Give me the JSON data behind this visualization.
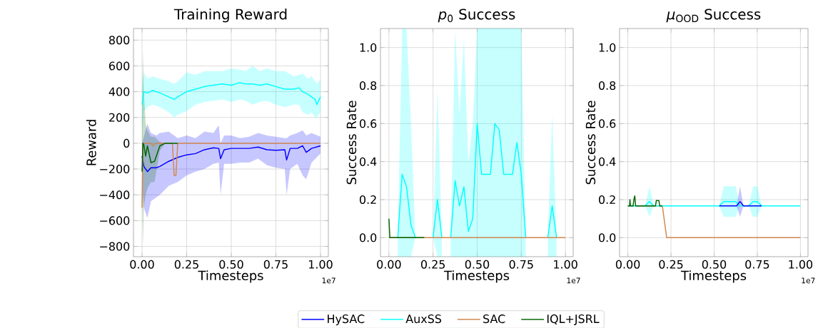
{
  "chart_data": [
    {
      "type": "line",
      "title": "Training Reward",
      "xlabel": "Timesteps",
      "ylabel": "Reward",
      "xlim": [
        -0.048,
        1.044
      ],
      "ylim": [
        -880,
        890
      ],
      "xticks": [
        {
          "value": 0,
          "label": "0.00"
        },
        {
          "value": 0.25,
          "label": "0.25"
        },
        {
          "value": 0.5,
          "label": "0.50"
        },
        {
          "value": 0.75,
          "label": "0.75"
        },
        {
          "value": 1,
          "label": "1.00"
        }
      ],
      "yticks": [
        {
          "value": -800,
          "label": "−800"
        },
        {
          "value": -600,
          "label": "−600"
        },
        {
          "value": -400,
          "label": "−400"
        },
        {
          "value": -200,
          "label": "−200"
        },
        0,
        200,
        400,
        600,
        800
      ],
      "grid": true,
      "legend": "bottom",
      "annotations": [
        "1e7"
      ],
      "series": [
        {
          "name": "HySAC",
          "color": "#0000ff",
          "x": [
            0,
            0.01,
            0.03,
            0.05,
            0.08,
            0.1,
            0.15,
            0.2,
            0.25,
            0.3,
            0.35,
            0.4,
            0.43,
            0.44,
            0.46,
            0.5,
            0.55,
            0.6,
            0.65,
            0.7,
            0.75,
            0.8,
            0.81,
            0.83,
            0.87,
            0.9,
            0.92,
            0.95,
            1.0
          ],
          "values": [
            -100,
            -180,
            -220,
            -190,
            -190,
            -180,
            -140,
            -110,
            -90,
            -80,
            -50,
            -35,
            -40,
            -120,
            -50,
            -40,
            -40,
            -40,
            -30,
            -50,
            -55,
            -50,
            -130,
            -40,
            -40,
            -20,
            -70,
            -40,
            -20
          ],
          "upper": [
            0,
            50,
            150,
            80,
            60,
            80,
            90,
            40,
            60,
            40,
            90,
            80,
            140,
            0,
            60,
            60,
            40,
            50,
            80,
            60,
            50,
            40,
            40,
            60,
            80,
            100,
            60,
            80,
            50
          ],
          "lower": [
            -300,
            -500,
            -580,
            -450,
            -420,
            -400,
            -330,
            -300,
            -250,
            -220,
            -200,
            -160,
            -150,
            -400,
            -160,
            -160,
            -150,
            -150,
            -120,
            -170,
            -190,
            -200,
            -400,
            -200,
            -160,
            -250,
            -280,
            -150,
            -80
          ]
        },
        {
          "name": "AuxSS",
          "color": "#00ffff",
          "x": [
            0,
            0.01,
            0.03,
            0.06,
            0.1,
            0.15,
            0.18,
            0.2,
            0.25,
            0.3,
            0.35,
            0.4,
            0.45,
            0.5,
            0.55,
            0.58,
            0.62,
            0.66,
            0.7,
            0.75,
            0.8,
            0.85,
            0.88,
            0.9,
            0.93,
            0.95,
            0.97,
            0.98,
            1.0
          ],
          "values": [
            300,
            400,
            390,
            410,
            390,
            360,
            340,
            360,
            400,
            420,
            440,
            450,
            460,
            450,
            470,
            460,
            460,
            450,
            460,
            440,
            420,
            420,
            430,
            400,
            380,
            360,
            340,
            300,
            360
          ],
          "upper": [
            450,
            550,
            500,
            520,
            500,
            480,
            460,
            480,
            550,
            530,
            560,
            560,
            560,
            580,
            570,
            560,
            600,
            560,
            580,
            560,
            560,
            520,
            530,
            540,
            500,
            520,
            480,
            460,
            500
          ],
          "lower": [
            100,
            250,
            280,
            300,
            280,
            240,
            200,
            220,
            250,
            300,
            320,
            330,
            340,
            320,
            340,
            330,
            300,
            320,
            330,
            300,
            280,
            300,
            300,
            240,
            220,
            240,
            200,
            200,
            240
          ]
        },
        {
          "name": "SAC",
          "color": "#d2874f",
          "x": [
            0,
            0.005,
            0.05,
            0.06,
            0.08,
            0.17,
            0.18,
            0.19,
            0.2,
            1.0
          ],
          "values": [
            -500,
            0,
            0,
            -20,
            0,
            0,
            -250,
            -250,
            0,
            0
          ]
        },
        {
          "name": "IQL+JSRL",
          "color": "#006400",
          "x": [
            0,
            0.005,
            0.01,
            0.02,
            0.03,
            0.05,
            0.07,
            0.1,
            0.13,
            0.2
          ],
          "values": [
            -220,
            0,
            -10,
            -100,
            -20,
            -150,
            -140,
            -20,
            0,
            0
          ],
          "upper": [
            200,
            720,
            400,
            150,
            100,
            50,
            50,
            10,
            0,
            0
          ],
          "lower": [
            -250,
            -790,
            -500,
            -400,
            -350,
            -300,
            -300,
            -60,
            0,
            0
          ]
        }
      ]
    },
    {
      "type": "line",
      "title": "*p*$_{0}$ Success",
      "xlabel": "Timesteps",
      "ylabel": "Success Rate",
      "xlim": [
        -0.048,
        1.044
      ],
      "ylim": [
        -0.1,
        1.1
      ],
      "xticks": [
        {
          "value": 0,
          "label": "0.00"
        },
        {
          "value": 0.25,
          "label": "0.25"
        },
        {
          "value": 0.5,
          "label": "0.50"
        },
        {
          "value": 0.75,
          "label": "0.75"
        },
        {
          "value": 1,
          "label": "1.00"
        }
      ],
      "yticks": [
        {
          "value": 0,
          "label": "0.0"
        },
        {
          "value": 0.2,
          "label": "0.2"
        },
        {
          "value": 0.4,
          "label": "0.4"
        },
        {
          "value": 0.6,
          "label": "0.6"
        },
        {
          "value": 0.8,
          "label": "0.8"
        },
        {
          "value": 1,
          "label": "1.0"
        }
      ],
      "grid": true,
      "annotations": [
        "1e7"
      ],
      "series": [
        {
          "color": "#00ffff",
          "x": [
            0.05,
            0.075,
            0.1,
            0.125,
            0.15,
            0.2,
            0.25,
            0.275,
            0.3,
            0.325,
            0.35,
            0.375,
            0.4,
            0.425,
            0.45,
            0.475,
            0.5,
            0.525,
            0.55,
            0.575,
            0.6,
            0.625,
            0.65,
            0.675,
            0.7,
            0.725,
            0.75,
            0.775,
            0.85,
            0.9,
            0.925,
            0.95
          ],
          "values": [
            0,
            0.333,
            0.267,
            0.067,
            0,
            null,
            0,
            0.2,
            0,
            null,
            0,
            0.3,
            0.167,
            0.267,
            0.033,
            0.1,
            0.6,
            0.333,
            0.333,
            0.333,
            0.6,
            0.567,
            0.333,
            0.333,
            0.333,
            0.5,
            0.333,
            0,
            null,
            0,
            0.167,
            0
          ],
          "upper": [
            0,
            1.1,
            1.1,
            0.6,
            0,
            null,
            0,
            0.78,
            0,
            null,
            0,
            1.1,
            0.65,
            1.05,
            0.4,
            0.6,
            1.1,
            1.1,
            1.1,
            1.1,
            1.1,
            1.1,
            1.1,
            1.1,
            1.1,
            1.1,
            1.1,
            0,
            null,
            0,
            0.65,
            0
          ],
          "lower": [
            -0.1,
            -0.1,
            -0.1,
            -0.1,
            0,
            null,
            0,
            -0.1,
            -0.1,
            null,
            -0.1,
            -0.1,
            -0.1,
            -0.1,
            -0.1,
            -0.1,
            -0.1,
            -0.1,
            -0.1,
            -0.1,
            -0.1,
            -0.1,
            -0.1,
            -0.1,
            -0.1,
            -0.1,
            -0.1,
            -0.1,
            null,
            -0.1,
            -0.1,
            -0.1
          ]
        },
        {
          "color": "#d2874f",
          "x": [
            0,
            1.0
          ],
          "values": [
            0,
            0
          ]
        },
        {
          "color": "#006400",
          "x": [
            0,
            0.005,
            0.2
          ],
          "values": [
            0.1,
            0,
            0
          ]
        }
      ]
    },
    {
      "type": "line",
      "title": "*μ*$_{OOD}$ Success",
      "xlabel": "Timesteps",
      "ylabel": "Success Rate",
      "xlim": [
        -0.048,
        1.044
      ],
      "ylim": [
        -0.1,
        1.1
      ],
      "xticks": [
        {
          "value": 0,
          "label": "0.00"
        },
        {
          "value": 0.25,
          "label": "0.25"
        },
        {
          "value": 0.5,
          "label": "0.50"
        },
        {
          "value": 0.75,
          "label": "0.75"
        },
        {
          "value": 1,
          "label": "1.00"
        }
      ],
      "yticks": [
        {
          "value": 0,
          "label": "0.0"
        },
        {
          "value": 0.2,
          "label": "0.2"
        },
        {
          "value": 0.4,
          "label": "0.4"
        },
        {
          "value": 0.6,
          "label": "0.6"
        },
        {
          "value": 0.8,
          "label": "0.8"
        },
        {
          "value": 1,
          "label": "1.0"
        }
      ],
      "grid": true,
      "annotations": [
        "1e7"
      ],
      "series": [
        {
          "color": "#d2874f",
          "x": [
            0,
            0.2,
            0.225,
            1.0
          ],
          "values": [
            0.167,
            0.167,
            0,
            0
          ]
        },
        {
          "color": "#00ffff",
          "x": [
            0,
            0.1,
            0.125,
            0.15,
            0.53,
            0.555,
            0.625,
            0.65,
            0.7,
            0.725,
            0.75,
            0.775,
            1.0
          ],
          "values": [
            0.167,
            0.167,
            0.19,
            0.167,
            0.167,
            0.19,
            0.19,
            0.167,
            0.167,
            0.19,
            0.19,
            0.167,
            0.167
          ],
          "upper": [
            0.167,
            0.167,
            0.27,
            0.167,
            0.167,
            0.27,
            0.27,
            0.167,
            0.167,
            0.27,
            0.27,
            0.167,
            0.167
          ],
          "lower": [
            0.167,
            0.167,
            0.11,
            0.167,
            0.167,
            0.11,
            0.11,
            0.167,
            0.167,
            0.11,
            0.11,
            0.167,
            0.167
          ]
        },
        {
          "color": "#0000ff",
          "x": [
            0.53,
            0.63,
            0.65,
            0.67,
            0.775
          ],
          "values": [
            0.167,
            0.167,
            0.19,
            0.167,
            0.167
          ],
          "upper": [
            0.167,
            0.167,
            0.27,
            0.167,
            0.167
          ],
          "lower": [
            0.167,
            0.167,
            0.11,
            0.167,
            0.167
          ]
        },
        {
          "color": "#006400",
          "x": [
            0,
            0.01,
            0.012,
            0.015,
            0.03,
            0.035,
            0.04,
            0.045,
            0.16,
            0.165,
            0.18,
            0.185,
            0.2
          ],
          "values": [
            0.167,
            0.167,
            0.2,
            0.167,
            0.167,
            0.2,
            0.22,
            0.167,
            0.167,
            0.195,
            0.195,
            0.167,
            0.167
          ]
        }
      ]
    }
  ]
}
